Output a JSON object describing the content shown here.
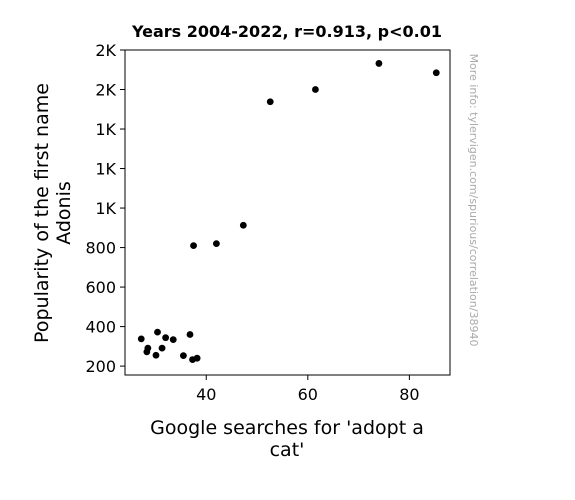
{
  "chart_data": {
    "type": "scatter",
    "title": "Years 2004-2022, r=0.913, p<0.01",
    "xlabel_lines": [
      "Google searches for 'adopt a",
      "cat'"
    ],
    "ylabel_lines": [
      "Popularity of the first name",
      "Adonis"
    ],
    "xlim": [
      24,
      88
    ],
    "ylim": [
      155,
      1800
    ],
    "x_ticks": [
      {
        "value": 40,
        "label": "40"
      },
      {
        "value": 60,
        "label": "60"
      },
      {
        "value": 80,
        "label": "80"
      }
    ],
    "y_ticks": [
      {
        "value": 200,
        "label": "200"
      },
      {
        "value": 400,
        "label": "400"
      },
      {
        "value": 600,
        "label": "600"
      },
      {
        "value": 800,
        "label": "800"
      },
      {
        "value": 1000,
        "label": "1K"
      },
      {
        "value": 1200,
        "label": "1K"
      },
      {
        "value": 1400,
        "label": "1K"
      },
      {
        "value": 1600,
        "label": "2K"
      },
      {
        "value": 1800,
        "label": "2K"
      }
    ],
    "grid": false,
    "point_color": "#000000",
    "points": [
      {
        "x": 27.2,
        "y": 338
      },
      {
        "x": 28.3,
        "y": 272
      },
      {
        "x": 28.5,
        "y": 291
      },
      {
        "x": 30.1,
        "y": 255
      },
      {
        "x": 30.4,
        "y": 372
      },
      {
        "x": 31.3,
        "y": 291
      },
      {
        "x": 32.0,
        "y": 344
      },
      {
        "x": 33.5,
        "y": 334
      },
      {
        "x": 35.5,
        "y": 253
      },
      {
        "x": 36.8,
        "y": 360
      },
      {
        "x": 37.3,
        "y": 233
      },
      {
        "x": 37.5,
        "y": 810
      },
      {
        "x": 38.2,
        "y": 240
      },
      {
        "x": 42.0,
        "y": 820
      },
      {
        "x": 47.3,
        "y": 913
      },
      {
        "x": 52.6,
        "y": 1538
      },
      {
        "x": 61.5,
        "y": 1600
      },
      {
        "x": 74.0,
        "y": 1732
      },
      {
        "x": 85.3,
        "y": 1685
      }
    ]
  },
  "watermark": "More info: tylervigen.com/spurious/correlation/38940"
}
